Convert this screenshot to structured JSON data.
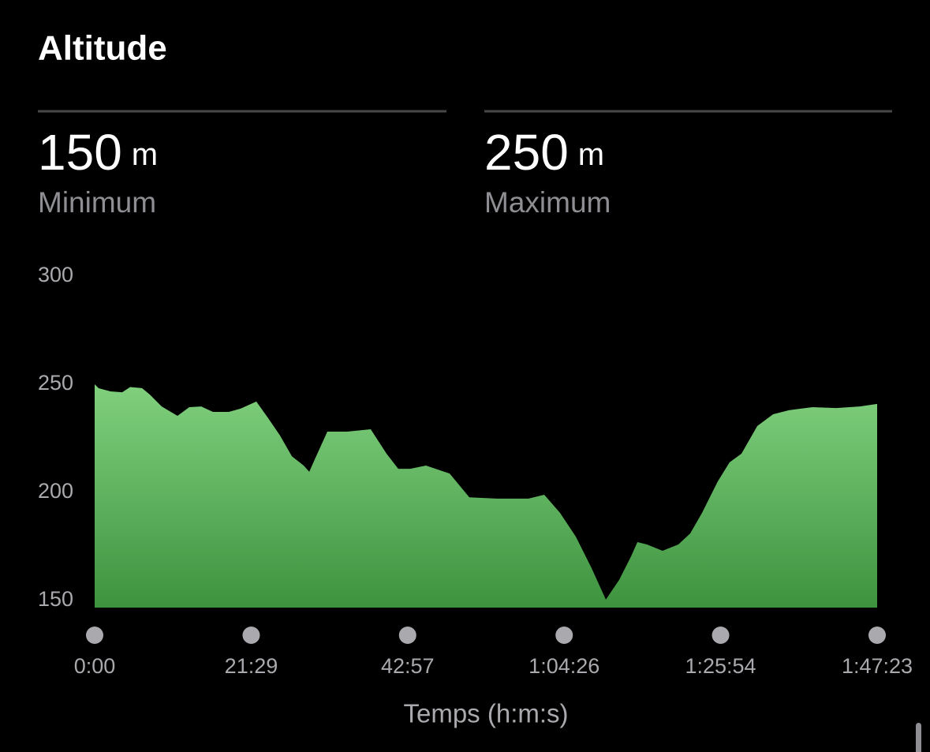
{
  "header": {
    "title": "Altitude",
    "stats": [
      {
        "value": "150",
        "unit": "m",
        "label": "Minimum"
      },
      {
        "value": "250",
        "unit": "m",
        "label": "Maximum"
      }
    ]
  },
  "chart_data": {
    "type": "area",
    "x_label": "Temps (h:m:s)",
    "color": "#5cb85c",
    "x": [
      0,
      32,
      130,
      227,
      292,
      390,
      455,
      552,
      682,
      779,
      877,
      974,
      1104,
      1201,
      1331,
      1429,
      1526,
      1624,
      1721,
      1767,
      1819,
      1916,
      2078,
      2273,
      2403,
      2500,
      2598,
      2728,
      2923,
      3085,
      3312,
      3572,
      3702,
      3832,
      3962,
      4092,
      4209,
      4319,
      4417,
      4469,
      4547,
      4676,
      4806,
      4904,
      5001,
      5131,
      5228,
      5326,
      5456,
      5586,
      5716,
      5911,
      6105,
      6300,
      6443
    ],
    "values": [
      253.3,
      251.5,
      250,
      249.6,
      252,
      251.5,
      248.5,
      243,
      238.7,
      242.7,
      243,
      240.5,
      240.5,
      242,
      245.3,
      237.6,
      229.6,
      220,
      215.7,
      212.8,
      219.4,
      231.4,
      231.4,
      232.5,
      221.2,
      214.2,
      214.2,
      215.7,
      212,
      201,
      200.4,
      200.4,
      202.2,
      193.8,
      182.8,
      168.2,
      153.7,
      162.8,
      173.7,
      180.3,
      179.2,
      176.3,
      179.2,
      184.3,
      193.8,
      208.4,
      217.2,
      221.2,
      234,
      239.4,
      241.3,
      242.7,
      242.3,
      243,
      244.2
    ],
    "xlim": [
      0,
      6443
    ],
    "xticks": [
      {
        "value": 0,
        "label": "0:00"
      },
      {
        "value": 1289,
        "label": "21:29"
      },
      {
        "value": 2577,
        "label": "42:57"
      },
      {
        "value": 3866,
        "label": "1:04:26"
      },
      {
        "value": 5154,
        "label": "1:25:54"
      },
      {
        "value": 6443,
        "label": "1:47:23"
      }
    ],
    "ylim": [
      150,
      300
    ],
    "yticks": [
      150,
      200,
      250,
      300
    ],
    "grid": false
  }
}
